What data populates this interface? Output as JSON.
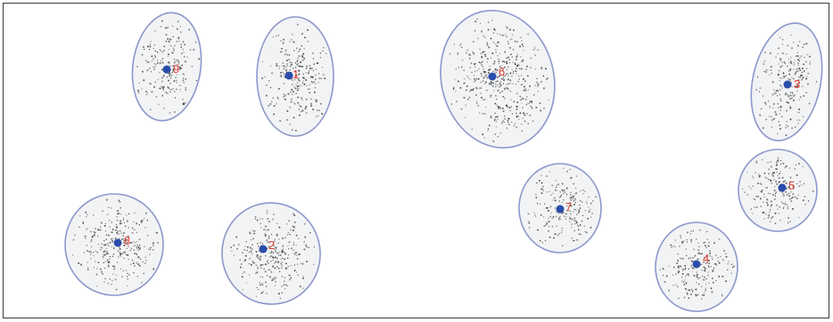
{
  "colors": {
    "ellipse_fill": "#f2f3f4",
    "ellipse_stroke": "#8c98cc",
    "centroid": "#2a4cab",
    "point": "#3b3b3b",
    "label": "#e03a2f",
    "border": "#3a3a3a"
  },
  "clusters": [
    {
      "id": "9",
      "label": "9"
    },
    {
      "id": "1",
      "label": "1"
    },
    {
      "id": "6",
      "label": "6"
    },
    {
      "id": "3",
      "label": "3"
    },
    {
      "id": "5",
      "label": "5"
    },
    {
      "id": "7",
      "label": "7"
    },
    {
      "id": "4",
      "label": "4"
    },
    {
      "id": "8",
      "label": "8"
    },
    {
      "id": "2",
      "label": "2"
    }
  ]
}
